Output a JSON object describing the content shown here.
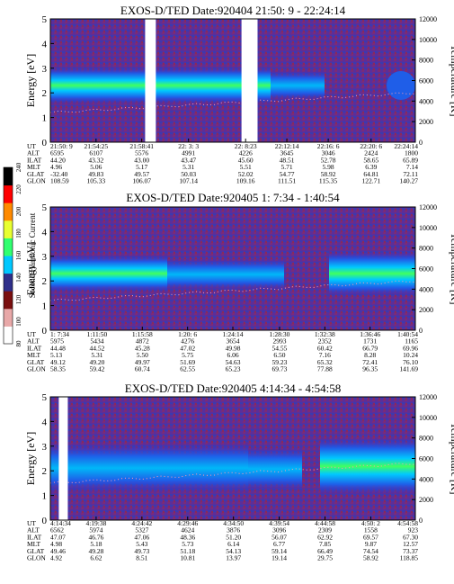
{
  "figure": {
    "colorbar": {
      "label": "Second Harmonic Current",
      "ticks": [
        80,
        100,
        120,
        140,
        160,
        180,
        200,
        220,
        240
      ],
      "colors": [
        "#ffffff",
        "#e8a8a8",
        "#7a0f0f",
        "#2f2f8a",
        "#00c8ff",
        "#30ff70",
        "#e8ff30",
        "#ff8a00",
        "#ff0000",
        "#000000"
      ]
    }
  },
  "chart_data": [
    {
      "type": "heatmap",
      "title": "EXOS-D/TED   Date:920404  21:50: 9 - 22:24:14",
      "ylabel": "Energy [eV]",
      "ylabel_right": "Temperature [K]",
      "ylim": [
        0,
        5
      ],
      "yticks": [
        0,
        1,
        2,
        3,
        4,
        5
      ],
      "ylim_right": [
        0,
        12000
      ],
      "yticks_right": [
        0,
        2000,
        4000,
        6000,
        8000,
        10000,
        12000
      ],
      "band_center_ev": 2.3,
      "data_gaps": [
        "21:59:00-22:00:00",
        "22:08:00-22:09:30"
      ],
      "table": {
        "row_labels": [
          "UT",
          "ALT",
          "ILAT",
          "MLT",
          "GLAT",
          "GLON"
        ],
        "columns": [
          [
            "21:50: 9",
            "6595",
            "44.20",
            "4.96",
            "-32.40",
            "108.59"
          ],
          [
            "21:54:25",
            "6107",
            "43.32",
            "5.06",
            "49.83",
            "105.33"
          ],
          [
            "21:58:41",
            "5576",
            "43.00",
            "5.17",
            "49.57",
            "106.07"
          ],
          [
            "22: 3: 3",
            "4991",
            "43.47",
            "5.31",
            "50.03",
            "107.14"
          ],
          [
            "22: 8:23",
            "4226",
            "45.60",
            "5.51",
            "52.02",
            "109.16"
          ],
          [
            "22:12:14",
            "3645",
            "48.51",
            "5.71",
            "54.77",
            "111.51"
          ],
          [
            "22:16: 6",
            "3046",
            "52.78",
            "5.98",
            "58.92",
            "115.35"
          ],
          [
            "22:20: 6",
            "2424",
            "58.65",
            "6.39",
            "64.81",
            "122.71"
          ],
          [
            "22:24:14",
            "1800",
            "65.89",
            "7.14",
            "72.11",
            "140.27"
          ]
        ]
      }
    },
    {
      "type": "heatmap",
      "title": "EXOS-D/TED   Date:920405   1: 7:34 - 1:40:54",
      "ylabel": "Energy [eV]",
      "ylabel_right": "Temperature [K]",
      "ylim": [
        0,
        5
      ],
      "yticks": [
        0,
        1,
        2,
        3,
        4,
        5
      ],
      "ylim_right": [
        0,
        12000
      ],
      "yticks_right": [
        0,
        2000,
        4000,
        6000,
        8000,
        10000,
        12000
      ],
      "band_center_ev": 2.3,
      "data_gaps": [],
      "table": {
        "row_labels": [
          "UT",
          "ALT",
          "ILAT",
          "MLT",
          "GLAT",
          "GLON"
        ],
        "columns": [
          [
            "1: 7:34",
            "5975",
            "44.48",
            "5.13",
            "49.12",
            "58.35"
          ],
          [
            "1:11:50",
            "5434",
            "44.52",
            "5.31",
            "49.20",
            "59.42"
          ],
          [
            "1:15:58",
            "4872",
            "45.28",
            "5.50",
            "49.97",
            "60.74"
          ],
          [
            "1:20: 6",
            "4276",
            "47.02",
            "5.75",
            "51.69",
            "62.55"
          ],
          [
            "1:24:14",
            "3654",
            "49.98",
            "6.06",
            "54.63",
            "65.23"
          ],
          [
            "1:28:30",
            "2993",
            "54.55",
            "6.50",
            "59.23",
            "69.73"
          ],
          [
            "1:32:38",
            "2352",
            "60.42",
            "7.16",
            "65.32",
            "77.88"
          ],
          [
            "1:36:46",
            "1731",
            "66.79",
            "8.28",
            "72.41",
            "96.35"
          ],
          [
            "1:40:54",
            "1165",
            "69.96",
            "10.24",
            "76.10",
            "141.69"
          ]
        ]
      }
    },
    {
      "type": "heatmap",
      "title": "EXOS-D/TED   Date:920405   4:14:34 - 4:54:58",
      "ylabel": "Energy [eV]",
      "ylabel_right": "Temperature [K]",
      "ylim": [
        0,
        5
      ],
      "yticks": [
        0,
        1,
        2,
        3,
        4,
        5
      ],
      "ylim_right": [
        0,
        12000
      ],
      "yticks_right": [
        0,
        2000,
        4000,
        6000,
        8000,
        10000,
        12000
      ],
      "band_center_ev": 2.0,
      "data_gaps": [
        "4:15:30-4:16:30"
      ],
      "table": {
        "row_labels": [
          "UT",
          "ALT",
          "ILAT",
          "MLT",
          "GLAT",
          "GLON"
        ],
        "columns": [
          [
            "4:14:34",
            "6562",
            "47.07",
            "4.98",
            "49.46",
            "4.92"
          ],
          [
            "4:19:38",
            "5974",
            "46.76",
            "5.18",
            "49.28",
            "6.62"
          ],
          [
            "4:24:42",
            "5327",
            "47.06",
            "5.43",
            "49.73",
            "8.51"
          ],
          [
            "4:29:46",
            "4624",
            "48.36",
            "5.73",
            "51.18",
            "10.81"
          ],
          [
            "4:34:50",
            "3876",
            "51.20",
            "6.14",
            "54.13",
            "13.97"
          ],
          [
            "4:39:54",
            "3096",
            "56.07",
            "6.77",
            "59.14",
            "19.14"
          ],
          [
            "4:44:58",
            "2309",
            "62.92",
            "7.85",
            "66.49",
            "29.75"
          ],
          [
            "4:50: 2",
            "1558",
            "69.57",
            "9.87",
            "74.54",
            "58.92"
          ],
          [
            "4:54:58",
            "923",
            "67.30",
            "12.57",
            "73.37",
            "118.85"
          ]
        ]
      }
    }
  ]
}
